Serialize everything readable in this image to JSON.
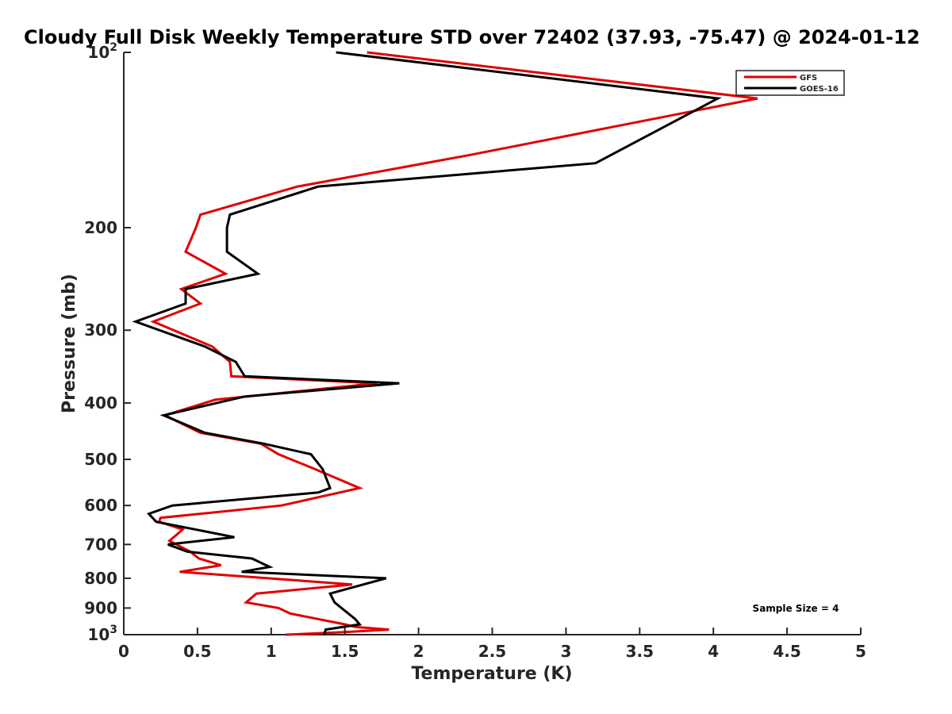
{
  "chart_data": {
    "type": "line",
    "title": "Cloudy Full Disk Weekly Temperature STD over 72402 (37.93, -75.47) @ 2024-01-12",
    "xlabel": "Temperature (K)",
    "ylabel": "Pressure (mb)",
    "xlim": [
      0,
      5
    ],
    "ylim": [
      100,
      1000
    ],
    "y_scale": "log",
    "y_reversed": true,
    "grid": false,
    "legend_position": "top-right",
    "x_ticks": [
      0,
      0.5,
      1,
      1.5,
      2,
      2.5,
      3,
      3.5,
      4,
      4.5,
      5
    ],
    "x_tick_labels": [
      "0",
      "0.5",
      "1",
      "1.5",
      "2",
      "2.5",
      "3",
      "3.5",
      "4",
      "4.5",
      "5"
    ],
    "y_ticks": [
      100,
      200,
      300,
      400,
      500,
      600,
      700,
      800,
      900,
      1000
    ],
    "y_tick_labels": [
      {
        "base": "10",
        "exp": "2"
      },
      {
        "base": "200",
        "exp": ""
      },
      {
        "base": "300",
        "exp": ""
      },
      {
        "base": "400",
        "exp": ""
      },
      {
        "base": "500",
        "exp": ""
      },
      {
        "base": "600",
        "exp": ""
      },
      {
        "base": "700",
        "exp": ""
      },
      {
        "base": "800",
        "exp": ""
      },
      {
        "base": "900",
        "exp": ""
      },
      {
        "base": "10",
        "exp": "3"
      }
    ],
    "annotation": "Sample Size = 4",
    "series": [
      {
        "name": "GFS",
        "color": "#e00000",
        "x": [
          1.65,
          4.3,
          2.35,
          1.18,
          0.52,
          0.49,
          0.42,
          0.69,
          0.39,
          0.52,
          0.2,
          0.6,
          0.72,
          0.73,
          1.72,
          0.62,
          0.28,
          0.52,
          0.93,
          1.05,
          1.3,
          1.6,
          1.07,
          0.25,
          0.24,
          0.4,
          0.31,
          0.45,
          0.51,
          0.66,
          0.38,
          1.55,
          0.9,
          0.83,
          1.05,
          1.13,
          1.5,
          1.57,
          1.8,
          1.5,
          1.1
        ],
        "y": [
          100,
          120,
          150,
          170,
          190,
          200,
          220,
          240,
          255,
          270,
          290,
          320,
          340,
          360,
          370,
          395,
          420,
          450,
          470,
          490,
          520,
          560,
          600,
          630,
          640,
          660,
          690,
          720,
          740,
          760,
          780,
          820,
          850,
          880,
          900,
          920,
          960,
          970,
          980,
          990,
          1000
        ]
      },
      {
        "name": "GOES-16",
        "color": "#000000",
        "x": [
          1.44,
          4.03,
          3.2,
          1.32,
          0.72,
          0.7,
          0.7,
          0.91,
          0.42,
          0.42,
          0.08,
          0.55,
          0.76,
          0.82,
          1.87,
          0.82,
          0.27,
          0.55,
          0.95,
          1.27,
          1.35,
          1.4,
          1.32,
          0.33,
          0.17,
          0.22,
          0.75,
          0.3,
          0.43,
          0.87,
          0.99,
          0.8,
          1.78,
          1.55,
          1.4,
          1.43,
          1.57,
          1.6,
          1.37,
          1.36
        ],
        "y": [
          100,
          120,
          155,
          170,
          190,
          200,
          220,
          240,
          255,
          270,
          290,
          320,
          340,
          360,
          370,
          390,
          420,
          450,
          470,
          490,
          520,
          560,
          570,
          600,
          620,
          640,
          680,
          700,
          720,
          740,
          765,
          780,
          800,
          830,
          850,
          880,
          940,
          960,
          980,
          1000
        ]
      }
    ]
  }
}
